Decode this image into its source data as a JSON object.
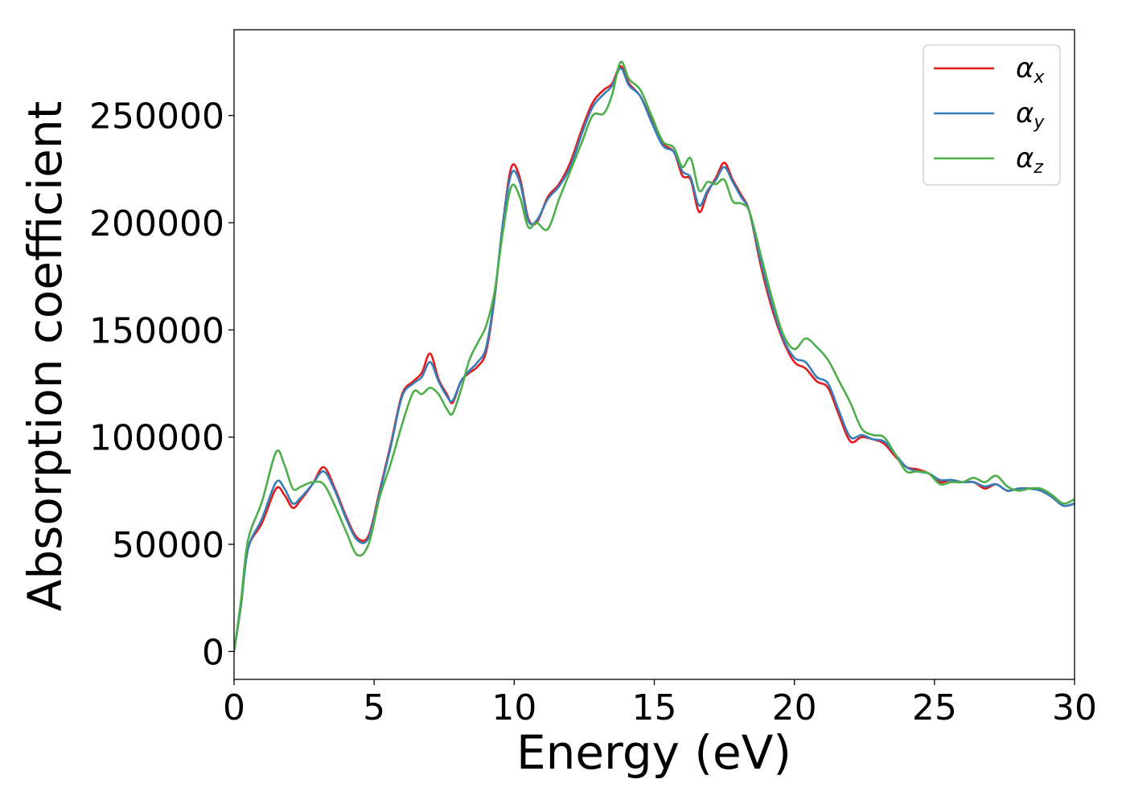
{
  "chart_data": {
    "type": "line",
    "xlabel": "Energy (eV)",
    "ylabel": "Absorption coefficient",
    "xlim": [
      0,
      30
    ],
    "ylim": [
      -13000,
      290000
    ],
    "xticks": [
      0,
      5,
      10,
      15,
      20,
      25,
      30
    ],
    "yticks": [
      0,
      50000,
      100000,
      150000,
      200000,
      250000
    ],
    "grid": false,
    "legend_position": "top-right",
    "series": [
      {
        "name": "αx",
        "symbol": "α",
        "subscript": "x",
        "color": "#e41a1c",
        "x": [
          0,
          0.25,
          0.5,
          1.0,
          1.5,
          1.8,
          2.1,
          2.4,
          2.8,
          3.2,
          3.6,
          4.0,
          4.4,
          4.8,
          5.2,
          5.6,
          6.0,
          6.4,
          6.7,
          7.0,
          7.3,
          7.6,
          7.8,
          8.1,
          8.4,
          8.7,
          9.0,
          9.3,
          9.6,
          9.9,
          10.2,
          10.5,
          10.8,
          11.2,
          11.6,
          12.0,
          12.4,
          12.8,
          13.2,
          13.5,
          13.8,
          14.1,
          14.5,
          14.9,
          15.3,
          15.7,
          16.0,
          16.3,
          16.6,
          16.9,
          17.2,
          17.5,
          17.8,
          18.1,
          18.4,
          18.8,
          19.2,
          19.6,
          20.0,
          20.4,
          20.8,
          21.2,
          21.6,
          22.0,
          22.4,
          22.8,
          23.2,
          23.6,
          24.0,
          24.4,
          24.8,
          25.2,
          25.6,
          26.0,
          26.4,
          26.8,
          27.2,
          27.6,
          28.0,
          28.4,
          28.8,
          29.2,
          29.6,
          30.0
        ],
        "y": [
          0,
          22000,
          48000,
          60000,
          76000,
          73000,
          67000,
          71000,
          78000,
          86000,
          76000,
          63000,
          53000,
          54000,
          75000,
          97000,
          120000,
          126000,
          130000,
          139000,
          127000,
          120000,
          116000,
          126000,
          130000,
          133000,
          140000,
          165000,
          200000,
          226000,
          221000,
          202000,
          200000,
          212000,
          218000,
          228000,
          243000,
          256000,
          262000,
          265000,
          273000,
          265000,
          259000,
          248000,
          237000,
          233000,
          222000,
          220000,
          205000,
          214000,
          221000,
          228000,
          220000,
          213000,
          205000,
          180000,
          160000,
          145000,
          135000,
          132000,
          126000,
          123000,
          110000,
          98000,
          100000,
          99000,
          97000,
          91000,
          86000,
          85000,
          83000,
          79000,
          80000,
          79000,
          79000,
          76000,
          78000,
          75000,
          76000,
          76000,
          75000,
          72000,
          68000,
          69000
        ]
      },
      {
        "name": "αy",
        "symbol": "α",
        "subscript": "y",
        "color": "#377eb8",
        "x": [
          0,
          0.25,
          0.5,
          1.0,
          1.5,
          1.8,
          2.1,
          2.4,
          2.8,
          3.2,
          3.6,
          4.0,
          4.4,
          4.8,
          5.2,
          5.6,
          6.0,
          6.4,
          6.7,
          7.0,
          7.3,
          7.6,
          7.8,
          8.1,
          8.4,
          8.7,
          9.0,
          9.3,
          9.6,
          9.9,
          10.2,
          10.5,
          10.8,
          11.2,
          11.6,
          12.0,
          12.4,
          12.8,
          13.2,
          13.5,
          13.8,
          14.1,
          14.5,
          14.9,
          15.3,
          15.7,
          16.0,
          16.3,
          16.6,
          16.9,
          17.2,
          17.5,
          17.8,
          18.1,
          18.4,
          18.8,
          19.2,
          19.6,
          20.0,
          20.4,
          20.8,
          21.2,
          21.6,
          22.0,
          22.4,
          22.8,
          23.2,
          23.6,
          24.0,
          24.4,
          24.8,
          25.2,
          25.6,
          26.0,
          26.4,
          26.8,
          27.2,
          27.6,
          28.0,
          28.4,
          28.8,
          29.2,
          29.6,
          30.0
        ],
        "y": [
          0,
          22000,
          48000,
          62000,
          79000,
          76000,
          69000,
          72000,
          78000,
          84000,
          75000,
          62000,
          52000,
          53000,
          74000,
          96000,
          119000,
          125000,
          128000,
          135000,
          126000,
          119000,
          117000,
          126000,
          131000,
          135000,
          142000,
          166000,
          200000,
          223000,
          219000,
          201000,
          201000,
          211000,
          217000,
          226000,
          241000,
          254000,
          260000,
          264000,
          272000,
          264000,
          259000,
          247000,
          236000,
          233000,
          224000,
          221000,
          208000,
          215000,
          220000,
          226000,
          219000,
          212000,
          205000,
          182000,
          162000,
          146000,
          137000,
          135000,
          128000,
          125000,
          112000,
          100000,
          101000,
          99000,
          98000,
          92000,
          86000,
          84000,
          83000,
          80000,
          80000,
          79000,
          79000,
          77000,
          78000,
          75000,
          76000,
          76000,
          75000,
          72000,
          68000,
          69000
        ]
      },
      {
        "name": "αz",
        "symbol": "α",
        "subscript": "z",
        "color": "#4daf4a",
        "x": [
          0,
          0.25,
          0.5,
          1.0,
          1.5,
          1.8,
          2.1,
          2.4,
          2.8,
          3.2,
          3.6,
          4.0,
          4.4,
          4.8,
          5.2,
          5.6,
          6.0,
          6.4,
          6.7,
          7.0,
          7.3,
          7.6,
          7.8,
          8.1,
          8.4,
          8.7,
          9.0,
          9.3,
          9.6,
          9.9,
          10.2,
          10.5,
          10.8,
          11.2,
          11.6,
          12.0,
          12.4,
          12.8,
          13.2,
          13.5,
          13.8,
          14.1,
          14.5,
          14.9,
          15.3,
          15.7,
          16.0,
          16.3,
          16.6,
          16.9,
          17.2,
          17.5,
          17.8,
          18.1,
          18.4,
          18.8,
          19.2,
          19.6,
          20.0,
          20.4,
          20.8,
          21.2,
          21.6,
          22.0,
          22.4,
          22.8,
          23.2,
          23.6,
          24.0,
          24.4,
          24.8,
          25.2,
          25.6,
          26.0,
          26.4,
          26.8,
          27.2,
          27.6,
          28.0,
          28.4,
          28.8,
          29.2,
          29.6,
          30.0
        ],
        "y": [
          0,
          24000,
          52000,
          70000,
          93000,
          87000,
          76000,
          77000,
          79000,
          78000,
          68000,
          56000,
          45000,
          50000,
          72000,
          88000,
          106000,
          121000,
          120000,
          123000,
          120000,
          113000,
          111000,
          122000,
          136000,
          144000,
          152000,
          168000,
          196000,
          217000,
          212000,
          198000,
          200000,
          197000,
          211000,
          224000,
          237000,
          250000,
          251000,
          260000,
          275000,
          267000,
          262000,
          250000,
          238000,
          235000,
          226000,
          230000,
          215000,
          219000,
          218000,
          220000,
          210000,
          209000,
          205000,
          185000,
          165000,
          148000,
          141000,
          146000,
          142000,
          136000,
          126000,
          116000,
          104000,
          101000,
          100000,
          92000,
          84000,
          84000,
          83000,
          78000,
          79000,
          79000,
          81000,
          79000,
          82000,
          77000,
          75000,
          76000,
          76000,
          73000,
          69000,
          71000
        ]
      }
    ]
  }
}
